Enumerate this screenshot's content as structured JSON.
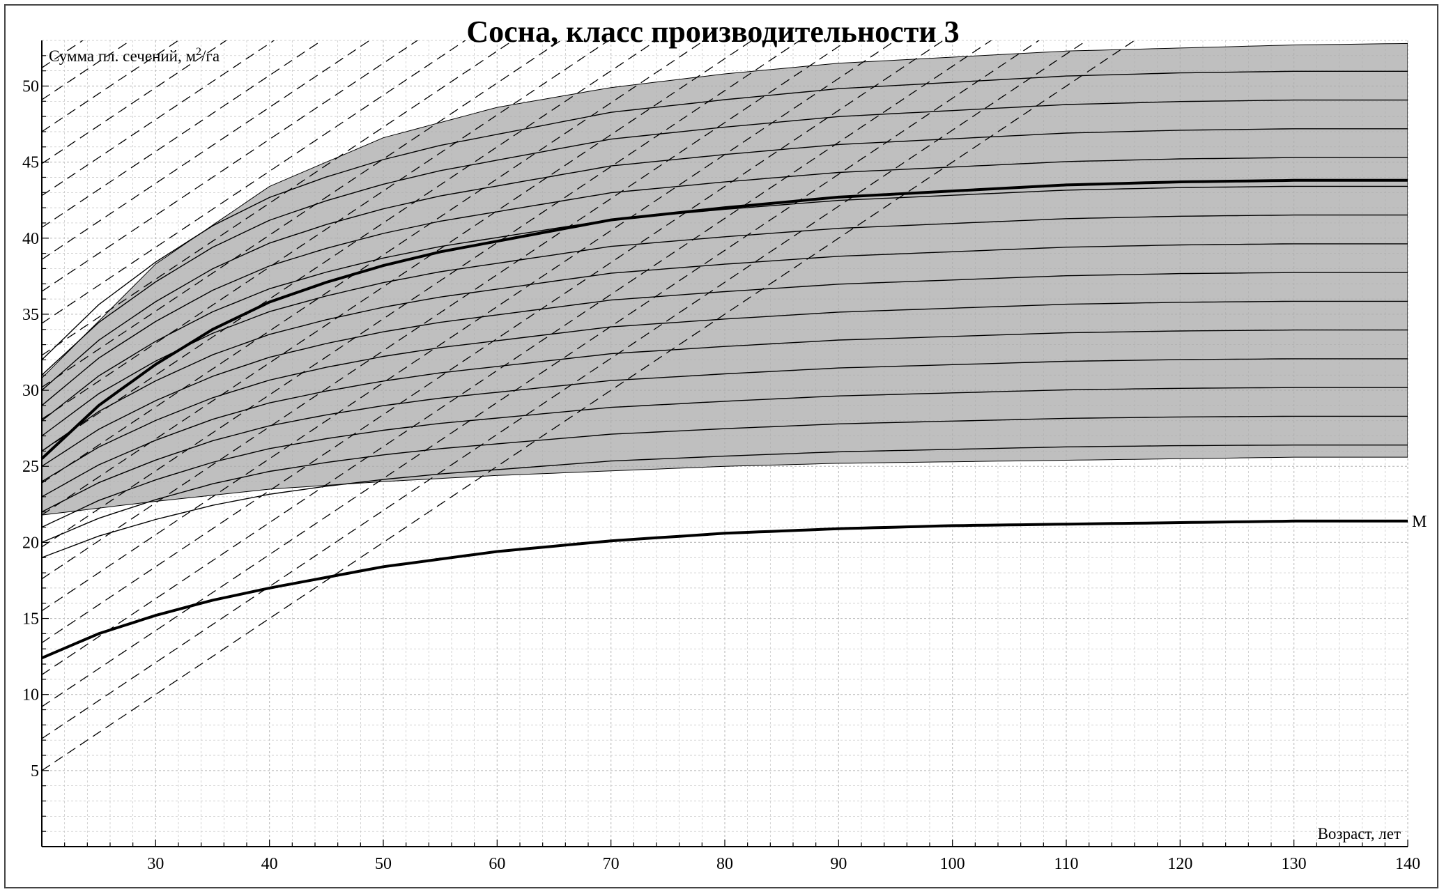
{
  "chart_data": {
    "type": "line",
    "title": "Сосна, класс производительности 3",
    "ylabel_prefix": "Сумма пл. сечений, м",
    "ylabel_sup": "2",
    "ylabel_suffix": "/га",
    "xlabel": "Возраст, лет",
    "xlim": [
      20,
      140
    ],
    "ylim": [
      0,
      53
    ],
    "x_ticks": [
      30,
      40,
      50,
      60,
      70,
      80,
      90,
      100,
      110,
      120,
      130,
      140
    ],
    "y_ticks": [
      5,
      10,
      15,
      20,
      25,
      30,
      35,
      40,
      45,
      50
    ],
    "x_tick_labels": [
      "30",
      "40",
      "50",
      "60",
      "70",
      "80",
      "90",
      "100",
      "110",
      "120",
      "130",
      "140"
    ],
    "y_tick_labels": [
      "5",
      "10",
      "15",
      "20",
      "25",
      "30",
      "35",
      "40",
      "45",
      "50"
    ],
    "grid": true,
    "shaded_band": {
      "upper": {
        "x": [
          20,
          30,
          40,
          50,
          60,
          70,
          80,
          90,
          100,
          110,
          120,
          130,
          140
        ],
        "y": [
          30.8,
          38.3,
          43.4,
          46.6,
          48.6,
          49.9,
          50.8,
          51.5,
          51.9,
          52.3,
          52.5,
          52.7,
          52.8
        ]
      },
      "lower": {
        "x": [
          20,
          30,
          40,
          50,
          60,
          70,
          80,
          90,
          100,
          110,
          120,
          130,
          140
        ],
        "y": [
          21.8,
          22.7,
          23.5,
          24.0,
          24.4,
          24.7,
          25.0,
          25.2,
          25.3,
          25.4,
          25.5,
          25.6,
          25.6
        ]
      },
      "color": "#a9a9a9"
    },
    "series": [
      {
        "label": "М",
        "role": "min",
        "x": [
          20,
          25,
          30,
          35,
          40,
          45,
          50,
          55,
          60,
          70,
          80,
          90,
          100,
          110,
          120,
          130,
          140
        ],
        "y": [
          12.4,
          14.0,
          15.2,
          16.2,
          17.0,
          17.7,
          18.4,
          18.9,
          19.4,
          20.1,
          20.6,
          20.9,
          21.1,
          21.2,
          21.3,
          21.4,
          21.4
        ]
      },
      {
        "role": "main",
        "x": [
          20,
          25,
          30,
          35,
          40,
          45,
          50,
          55,
          60,
          70,
          80,
          90,
          100,
          110,
          120,
          130,
          140
        ],
        "y": [
          25.5,
          29.0,
          31.7,
          34.0,
          35.8,
          37.1,
          38.2,
          39.1,
          39.8,
          41.2,
          42.0,
          42.7,
          43.1,
          43.5,
          43.7,
          43.8,
          43.8
        ]
      }
    ],
    "family": {
      "count": 14,
      "y_start_min": 19.0,
      "y_start_step": 1.0,
      "y_end_min": 26.4,
      "y_end_step": 1.89
    },
    "dashed_lines": {
      "count": 40,
      "slope_per_year": 0.5,
      "y0_start": 5,
      "y0_step": 2.1
    },
    "colors": {
      "band": "#a9a9a9",
      "line": "#000000",
      "grid": "#c0c0c0"
    }
  }
}
